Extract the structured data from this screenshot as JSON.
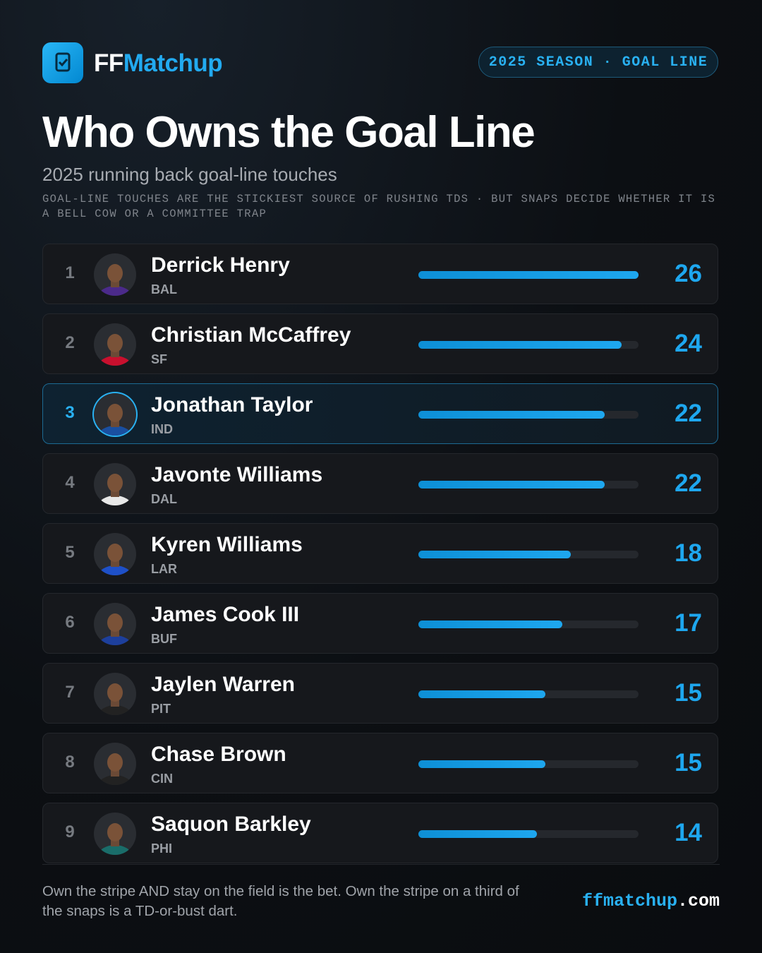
{
  "header": {
    "brand_prefix": "FF",
    "brand_suffix": "Matchup",
    "badge": "2025 SEASON · GOAL LINE"
  },
  "chart_data": {
    "type": "bar",
    "orientation": "horizontal",
    "title": "Who Owns the Goal Line",
    "subtitle": "2025 running back goal-line touches",
    "note": "GOAL-LINE TOUCHES ARE THE STICKIEST SOURCE OF RUSHING TDS · BUT SNAPS DECIDE WHETHER IT IS A BELL COW OR A COMMITTEE TRAP",
    "ranks": [
      1,
      2,
      3,
      4,
      5,
      6,
      7,
      8,
      9
    ],
    "categories": [
      "Derrick Henry",
      "Christian McCaffrey",
      "Jonathan Taylor",
      "Javonte Williams",
      "Kyren Williams",
      "James Cook III",
      "Jaylen Warren",
      "Chase Brown",
      "Saquon Barkley"
    ],
    "teams": [
      "BAL",
      "SF",
      "IND",
      "DAL",
      "LAR",
      "BUF",
      "PIT",
      "CIN",
      "PHI"
    ],
    "values": [
      26,
      24,
      22,
      22,
      18,
      17,
      15,
      15,
      14
    ],
    "xlim": [
      0,
      26
    ],
    "color": "#1ea7ef",
    "highlight": 2,
    "jersey_colors": [
      "#4b2a8a",
      "#c8102e",
      "#1a4fa0",
      "#e8e8e8",
      "#1e50c8",
      "#1d3f9c",
      "#222222",
      "#222222",
      "#1a6d6a"
    ]
  },
  "footer": {
    "text": "Own the stripe AND stay on the field is the bet. Own the stripe on a third of the snaps is a TD-or-bust dart.",
    "site_prefix": "ffmatchup",
    "site_suffix": ".com"
  }
}
